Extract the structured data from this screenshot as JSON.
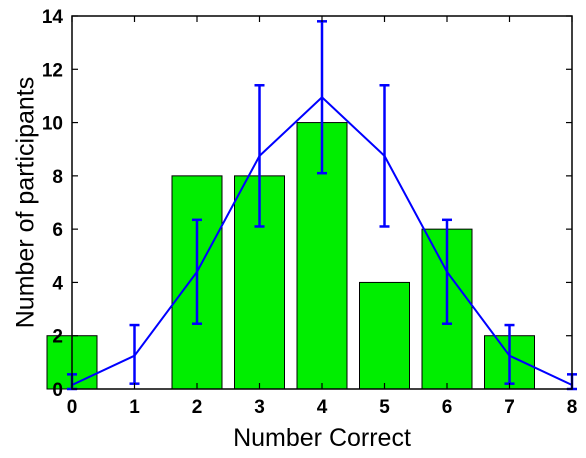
{
  "chart_data": {
    "type": "bar",
    "xlabel": "Number Correct",
    "ylabel": "Number of participants",
    "xlim": [
      0,
      8
    ],
    "ylim": [
      0,
      14
    ],
    "x_ticks": [
      "0",
      "1",
      "2",
      "3",
      "4",
      "5",
      "6",
      "7",
      "8"
    ],
    "y_ticks": [
      "0",
      "2",
      "4",
      "6",
      "8",
      "10",
      "12",
      "14"
    ],
    "grid": false,
    "legend": "none",
    "bar_series": {
      "categories": [
        0,
        1,
        2,
        3,
        4,
        5,
        6,
        7
      ],
      "values": [
        2,
        0,
        8,
        8,
        10,
        4,
        6,
        2
      ],
      "color": "#00ee00"
    },
    "line_series": {
      "x": [
        0,
        1,
        2,
        3,
        4,
        5,
        6,
        7,
        8
      ],
      "y": [
        0.15,
        1.25,
        4.4,
        8.75,
        10.95,
        8.75,
        4.4,
        1.25,
        0.15
      ],
      "error_low": [
        0,
        0.2,
        2.45,
        6.1,
        8.1,
        6.1,
        2.45,
        0.2,
        0
      ],
      "error_high": [
        0.55,
        2.4,
        6.35,
        11.4,
        13.8,
        11.4,
        6.35,
        2.4,
        0.55
      ],
      "color": "#0000ff"
    }
  }
}
